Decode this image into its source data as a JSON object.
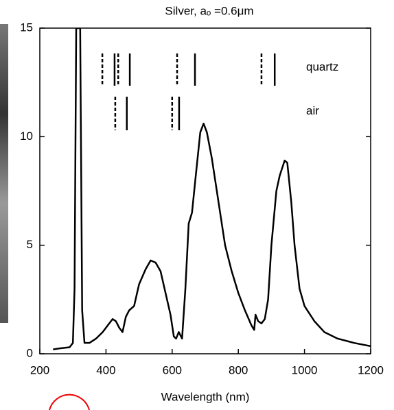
{
  "chart_data": {
    "type": "line",
    "title": "Silver, aₒ =0.6μm",
    "x_label": "Wavelength (nm)",
    "xlim": [
      200,
      1200
    ],
    "xticks": [
      200,
      400,
      600,
      800,
      1000,
      1200
    ],
    "ylim": [
      0,
      15
    ],
    "yticks": [
      0,
      5,
      10,
      15
    ],
    "color": "#000000",
    "x": [
      240,
      260,
      290,
      300,
      305,
      310,
      322,
      328,
      335,
      350,
      370,
      390,
      410,
      420,
      430,
      440,
      450,
      460,
      470,
      485,
      500,
      520,
      535,
      550,
      565,
      580,
      595,
      605,
      612,
      620,
      630,
      640,
      650,
      660,
      670,
      685,
      695,
      705,
      720,
      740,
      760,
      780,
      800,
      820,
      840,
      848,
      852,
      860,
      870,
      880,
      890,
      900,
      915,
      925,
      940,
      948,
      960,
      970,
      985,
      1000,
      1030,
      1060,
      1100,
      1150,
      1200
    ],
    "values": [
      0.2,
      0.25,
      0.3,
      0.5,
      3,
      15,
      15,
      2,
      0.5,
      0.5,
      0.7,
      1.0,
      1.4,
      1.6,
      1.5,
      1.2,
      1.0,
      1.7,
      2.0,
      2.2,
      3.2,
      3.9,
      4.3,
      4.2,
      3.8,
      2.8,
      1.8,
      0.8,
      0.7,
      1.0,
      0.7,
      3.0,
      6.0,
      6.5,
      8.0,
      10.2,
      10.6,
      10.2,
      9.0,
      7.0,
      5.0,
      3.8,
      2.8,
      2.0,
      1.3,
      1.1,
      1.8,
      1.5,
      1.4,
      1.6,
      2.5,
      5.0,
      7.5,
      8.2,
      8.9,
      8.8,
      7.0,
      5.0,
      3.0,
      2.2,
      1.5,
      1.0,
      0.7,
      0.5,
      0.35
    ],
    "markers": [
      {
        "label": "quartz",
        "dashed": [
          389,
          437,
          615,
          870
        ],
        "solid": [
          426,
          472,
          669,
          910
        ]
      },
      {
        "label": "air",
        "dashed": [
          428,
          600
        ],
        "solid": [
          463,
          621
        ]
      }
    ]
  }
}
